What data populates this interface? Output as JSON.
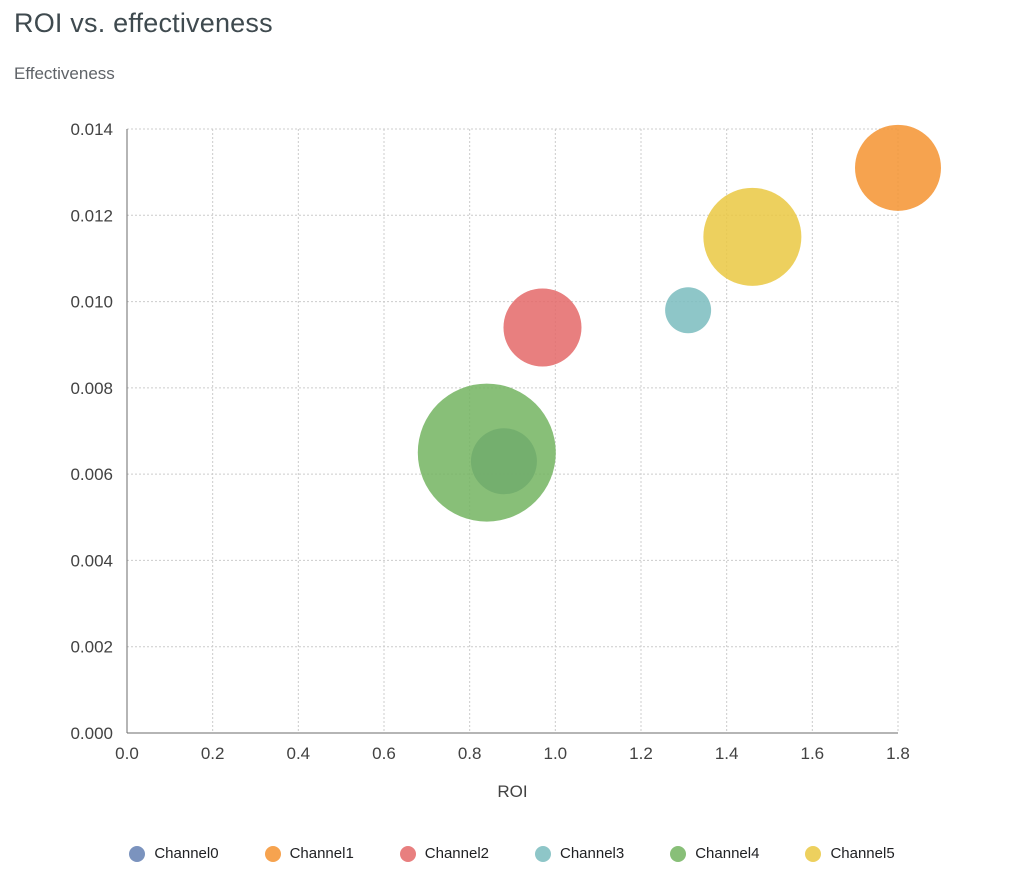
{
  "title": "ROI vs. effectiveness",
  "chart_data": {
    "type": "scatter",
    "subtype": "bubble",
    "title": "ROI vs. effectiveness",
    "xlabel": "ROI",
    "ylabel": "Effectiveness",
    "xlim": [
      0,
      1.8
    ],
    "ylim": [
      0,
      0.014
    ],
    "x_ticks": [
      0.0,
      0.2,
      0.4,
      0.6,
      0.8,
      1.0,
      1.2,
      1.4,
      1.6,
      1.8
    ],
    "x_tick_labels": [
      "0.0",
      "0.2",
      "0.4",
      "0.6",
      "0.8",
      "1.0",
      "1.2",
      "1.4",
      "1.6",
      "1.8"
    ],
    "y_ticks": [
      0.0,
      0.002,
      0.004,
      0.006,
      0.008,
      0.01,
      0.012,
      0.014
    ],
    "y_tick_labels": [
      "0.000",
      "0.002",
      "0.004",
      "0.006",
      "0.008",
      "0.010",
      "0.012",
      "0.014"
    ],
    "grid": true,
    "legend_position": "bottom",
    "series": [
      {
        "name": "Channel0",
        "x": 0.88,
        "y": 0.0063,
        "radius_px": 33,
        "color": "#6480b3"
      },
      {
        "name": "Channel1",
        "x": 1.8,
        "y": 0.0131,
        "radius_px": 43,
        "color": "#f49330"
      },
      {
        "name": "Channel2",
        "x": 0.97,
        "y": 0.0094,
        "radius_px": 39,
        "color": "#e46868"
      },
      {
        "name": "Channel3",
        "x": 1.31,
        "y": 0.0098,
        "radius_px": 23,
        "color": "#7abcbe"
      },
      {
        "name": "Channel4",
        "x": 0.84,
        "y": 0.0065,
        "radius_px": 69,
        "color": "#73b460"
      },
      {
        "name": "Channel5",
        "x": 1.46,
        "y": 0.0115,
        "radius_px": 49,
        "color": "#eac842"
      }
    ],
    "colors": {
      "title_text": "#3f4a4f",
      "axis_text": "#424242",
      "axis_title_text": "#5f6368",
      "grid_line": "#cccccc",
      "axis_line": "#6b6b6b",
      "background": "#ffffff"
    },
    "bubble_opacity": 0.85
  }
}
